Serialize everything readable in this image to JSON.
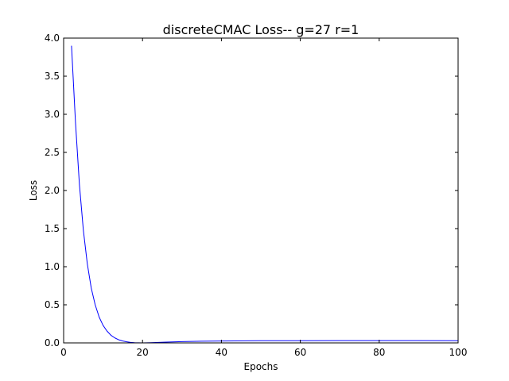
{
  "chart_data": {
    "type": "line",
    "title": "discreteCMAC Loss-- g=27 r=1",
    "xlabel": "Epochs",
    "ylabel": "Loss",
    "xlim": [
      0,
      100
    ],
    "ylim": [
      0.0,
      4.0
    ],
    "grid": false,
    "legend": "none",
    "xticks": [
      0,
      20,
      40,
      60,
      80,
      100
    ],
    "xtick_labels": [
      "0",
      "20",
      "40",
      "60",
      "80",
      "100"
    ],
    "yticks": [
      0.0,
      0.5,
      1.0,
      1.5,
      2.0,
      2.5,
      3.0,
      3.5,
      4.0
    ],
    "ytick_labels": [
      "0.0",
      "0.5",
      "1.0",
      "1.5",
      "2.0",
      "2.5",
      "3.0",
      "3.5",
      "4.0"
    ],
    "series": [
      {
        "name": "loss",
        "color": "#0000ff",
        "x": [
          2,
          3,
          4,
          5,
          6,
          7,
          8,
          9,
          10,
          11,
          12,
          13,
          14,
          15,
          16,
          17,
          18,
          19,
          20,
          22,
          24,
          26,
          30,
          35,
          40,
          50,
          60,
          70,
          80,
          90,
          100
        ],
        "y": [
          3.9,
          2.9,
          2.08,
          1.48,
          1.04,
          0.72,
          0.5,
          0.34,
          0.23,
          0.155,
          0.1,
          0.065,
          0.04,
          0.025,
          0.014,
          0.007,
          0.003,
          0.001,
          0.0,
          0.002,
          0.006,
          0.01,
          0.017,
          0.022,
          0.025,
          0.028,
          0.029,
          0.03,
          0.03,
          0.03,
          0.029
        ]
      }
    ]
  }
}
